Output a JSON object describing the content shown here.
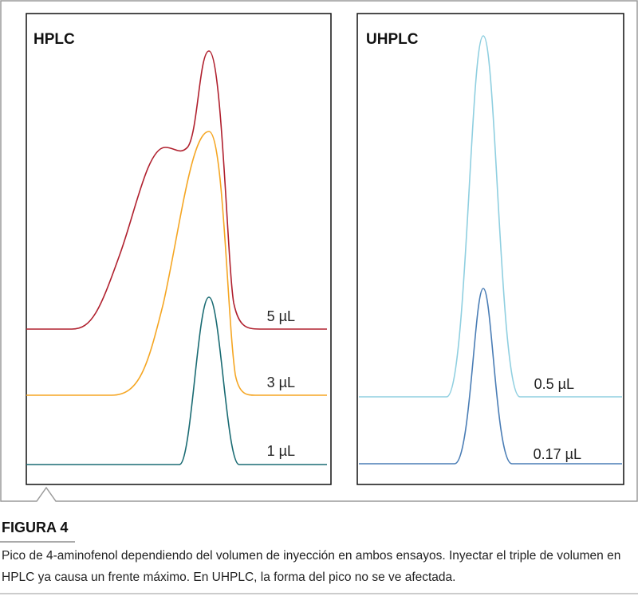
{
  "figure": {
    "panels": [
      {
        "title": "HPLC",
        "traces": [
          {
            "label": "5 µL"
          },
          {
            "label": "3 µL"
          },
          {
            "label": "1 µL"
          }
        ]
      },
      {
        "title": "UHPLC",
        "traces": [
          {
            "label": "0.5 µL"
          },
          {
            "label": "0.17 µL"
          }
        ]
      }
    ],
    "label": "FIGURA 4",
    "caption": "Pico de 4-aminofenol dependiendo del volumen de inyección en ambos ensayos. Inyectar el triple de volumen en HPLC ya causa un frente máximo. En UHPLC, la forma del pico no se ve afectada."
  }
}
